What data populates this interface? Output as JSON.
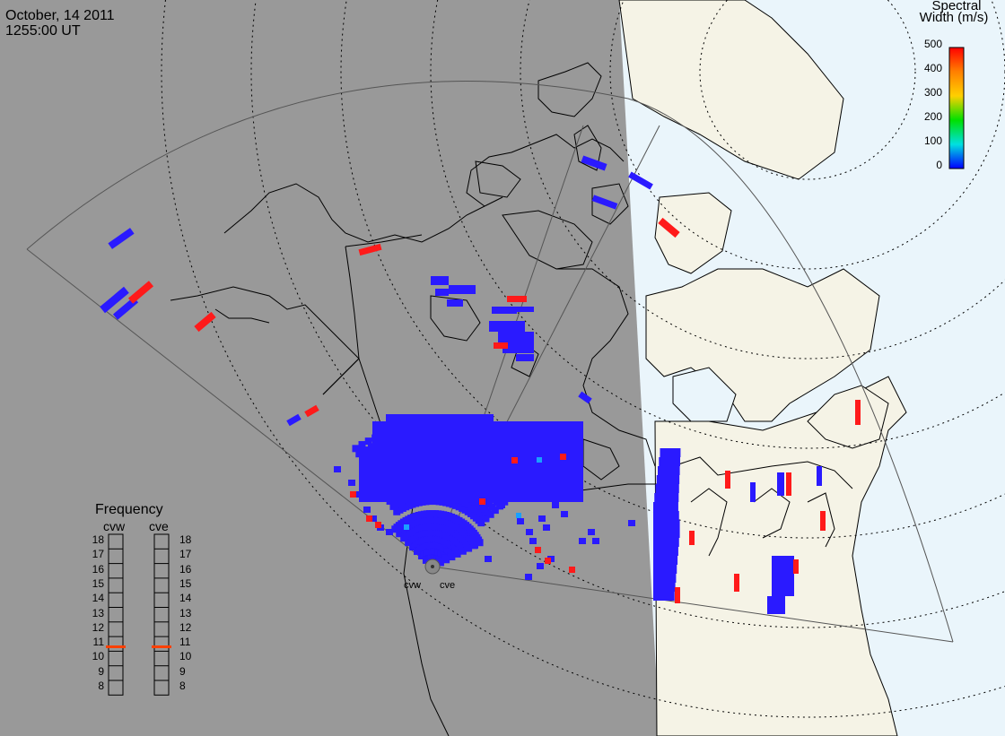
{
  "header": {
    "date": "October, 14 2011",
    "time": "1255:00 UT"
  },
  "spectral_width_legend": {
    "title_line1": "Spectral",
    "title_line2": "Width (m/s)",
    "ticks": [
      "500",
      "400",
      "300",
      "200",
      "100",
      "0"
    ],
    "colors": [
      "#ff0000",
      "#ff8000",
      "#ffd000",
      "#00e000",
      "#00e0e0",
      "#0000ff"
    ]
  },
  "frequency_panel": {
    "title": "Frequency",
    "left_radar": "cvw",
    "right_radar": "cve",
    "scale": [
      "18",
      "17",
      "16",
      "15",
      "14",
      "13",
      "12",
      "11",
      "10",
      "9",
      "8"
    ],
    "cvw_frequency": 10.8,
    "cve_frequency": 10.8,
    "marker_color": "#ff4000"
  },
  "radars": [
    "cvw",
    "cve"
  ],
  "map_colors": {
    "night": "#999999",
    "day_land": "#f5f3e6",
    "day_ocean": "#eaf5fb",
    "echo_low_width": "#2a1aff",
    "echo_high_width": "#ff1a1a",
    "echo_mid_width": "#1aa0ff"
  }
}
